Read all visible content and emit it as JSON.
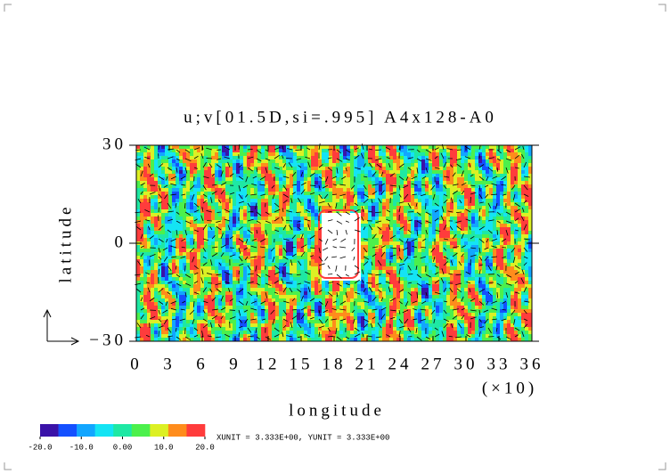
{
  "chart_data": {
    "type": "contour",
    "title": "u;v[01.5D,si=.995] A4x128-A0",
    "x_label": "longitude",
    "x_scale_label": "(×10)",
    "y_label": "latitude",
    "xlim": [
      0,
      36
    ],
    "xticks": [
      0,
      3,
      6,
      9,
      12,
      15,
      18,
      21,
      24,
      27,
      30,
      33,
      36
    ],
    "ylim": [
      -30,
      30
    ],
    "yticks": [
      {
        "value": -30,
        "label": "−30"
      },
      0,
      30
    ],
    "colorbar": {
      "colors": [
        "#3a12a8",
        "#1450ff",
        "#12a6ff",
        "#14e4f4",
        "#1ee8a4",
        "#4cf04c",
        "#dcf024",
        "#ff8c1c",
        "#ff3c3c"
      ],
      "lim": [
        -20,
        20
      ],
      "ticks": [
        {
          "value": -20,
          "label": "-20.0"
        },
        {
          "value": -10,
          "label": "-10.0"
        },
        {
          "value": 0,
          "label": "0.00"
        },
        {
          "value": 10,
          "label": "10.0"
        },
        {
          "value": 20,
          "label": "20.0"
        }
      ]
    },
    "note": "XUNIT = 3.333E+00, YUNIT = 3.333E+00"
  }
}
